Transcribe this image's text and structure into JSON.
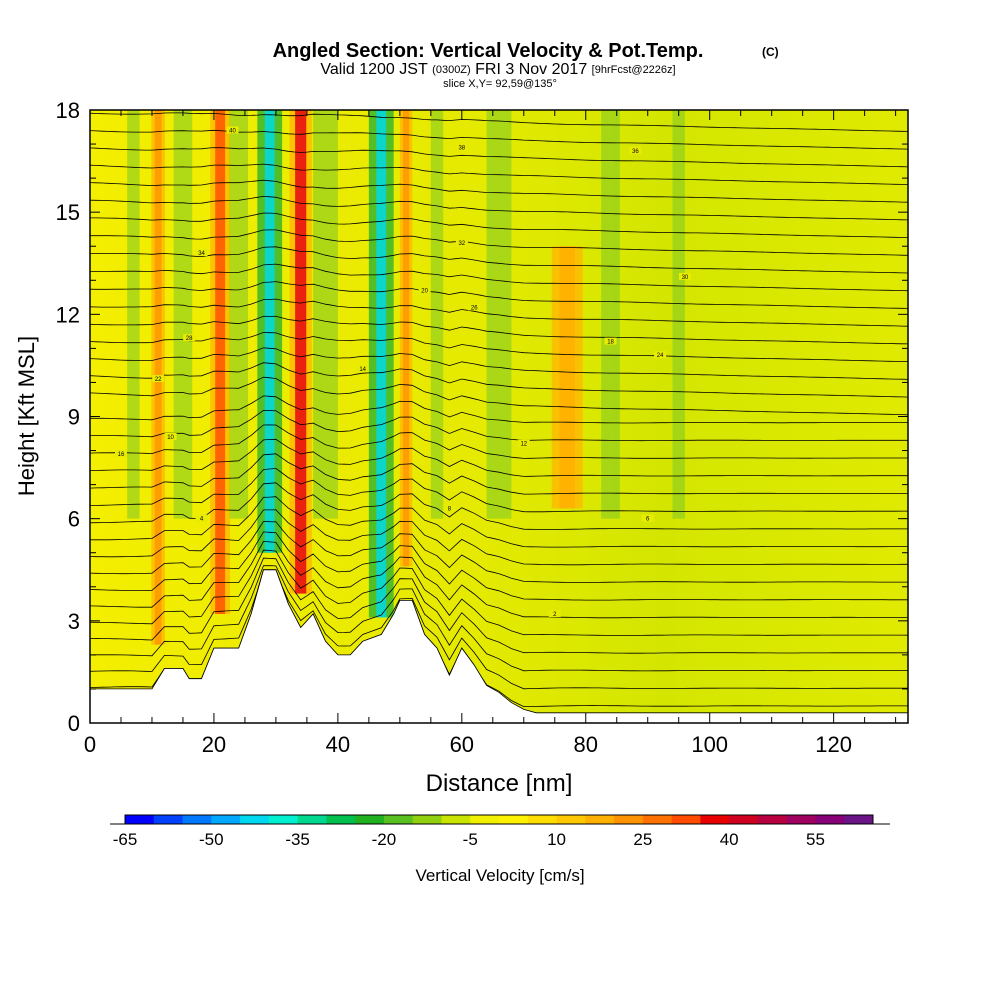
{
  "chart_data": {
    "type": "heatmap",
    "title": "Angled Section: Vertical Velocity & Pot.Temp.",
    "title_mark": "(C)",
    "subtitle": {
      "lead": "Valid 1200 JST",
      "utc": "(0300Z)",
      "date": "FRI 3 Nov 2017",
      "forecast": "[9hrFcst@2226z]"
    },
    "slice_label": "slice X,Y= 92,59@135°",
    "xlabel": "Distance [nm]",
    "ylabel": "Height [Kft MSL]",
    "xlim": [
      0,
      132
    ],
    "ylim": [
      0,
      18
    ],
    "x_ticks": [
      "0",
      "20",
      "40",
      "60",
      "80",
      "100",
      "120"
    ],
    "y_ticks": [
      "0",
      "3",
      "6",
      "9",
      "12",
      "15",
      "18"
    ],
    "colorbar": {
      "label": "Vertical Velocity [cm/s]",
      "tick_labels": [
        "-65",
        "-50",
        "-35",
        "-20",
        "-5",
        "10",
        "25",
        "40",
        "55"
      ],
      "colors": [
        "#0000ff",
        "#0040ff",
        "#0078ff",
        "#00a8ff",
        "#00d8f0",
        "#00f0d0",
        "#00d890",
        "#00c050",
        "#20b020",
        "#58c020",
        "#90d010",
        "#c8e400",
        "#f0f000",
        "#fff200",
        "#ffde00",
        "#ffc800",
        "#ffb000",
        "#ff9400",
        "#ff7200",
        "#ff4c00",
        "#e80000",
        "#d00020",
        "#b80040",
        "#a00060",
        "#880078",
        "#6a1488"
      ]
    },
    "updraft_bands_x_nm": [
      11,
      21,
      34,
      51,
      77
    ],
    "downdraft_bands_x_nm": [
      29,
      47
    ],
    "terrain_peaks": [
      {
        "x_nm": 29,
        "height_kft": 4.5
      },
      {
        "x_nm": 51,
        "height_kft": 3.6
      }
    ],
    "theta_contour_labels": [
      "40",
      "38",
      "36",
      "34",
      "32",
      "30",
      "28",
      "26",
      "24",
      "22",
      "20",
      "18",
      "16",
      "14",
      "12",
      "10",
      "8",
      "6",
      "4",
      "2"
    ]
  }
}
